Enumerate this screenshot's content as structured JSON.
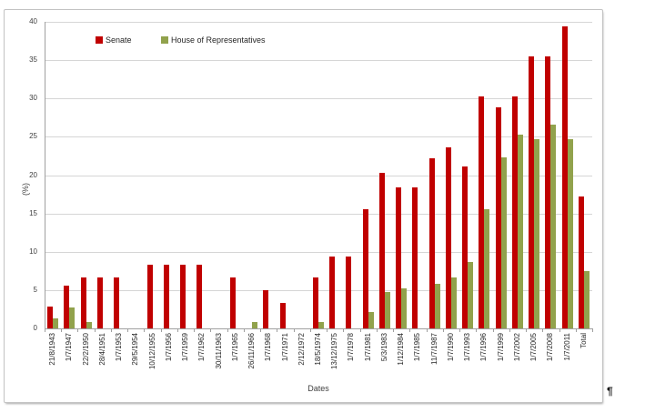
{
  "page": {
    "pilcrow": "¶"
  },
  "chart_data": {
    "type": "bar",
    "title": "",
    "xlabel": "Dates",
    "ylabel": "(%)",
    "ylim": [
      0,
      40
    ],
    "y_ticks": [
      0,
      5,
      10,
      15,
      20,
      25,
      30,
      35,
      40
    ],
    "grid": true,
    "legend_position": "top-inside",
    "categories": [
      "21/8/1943",
      "1/7/1947",
      "22/2/1950",
      "28/4/1951",
      "1/7/1953",
      "29/5/1954",
      "10/12/1955",
      "1/7/1956",
      "1/7/1959",
      "1/7/1962",
      "30/11/1963",
      "1/7/1965",
      "26/11/1966",
      "1/7/1968",
      "1/7/1971",
      "2/12/1972",
      "18/5/1974",
      "13/12/1975",
      "1/7/1978",
      "1/7/1981",
      "5/3/1983",
      "1/12/1984",
      "1/7/1985",
      "11/7/1987",
      "1/7/1990",
      "1/7/1993",
      "1/7/1996",
      "1/7/1999",
      "1/7/2002",
      "1/7/2005",
      "1/7/2008",
      "1/7/2011",
      "Total"
    ],
    "series": [
      {
        "name": "Senate",
        "color": "#C00000",
        "values": [
          2.8,
          5.6,
          6.7,
          6.7,
          6.7,
          0,
          8.3,
          8.3,
          8.3,
          8.3,
          0,
          6.7,
          0,
          5.0,
          3.3,
          0,
          6.7,
          9.4,
          9.4,
          15.6,
          20.3,
          18.4,
          18.4,
          22.2,
          23.6,
          21.1,
          30.3,
          28.9,
          30.3,
          35.5,
          35.5,
          39.4,
          17.2
        ]
      },
      {
        "name": "House of Representatives",
        "color": "#91A24C",
        "values": [
          1.3,
          2.7,
          0.8,
          0,
          0,
          0,
          0,
          0,
          0,
          0,
          0,
          0,
          0.8,
          0,
          0,
          0,
          0.8,
          0,
          0,
          2.1,
          4.8,
          5.2,
          0,
          5.8,
          6.7,
          8.7,
          15.5,
          22.3,
          25.3,
          24.7,
          26.6,
          24.7,
          7.5
        ]
      }
    ]
  }
}
